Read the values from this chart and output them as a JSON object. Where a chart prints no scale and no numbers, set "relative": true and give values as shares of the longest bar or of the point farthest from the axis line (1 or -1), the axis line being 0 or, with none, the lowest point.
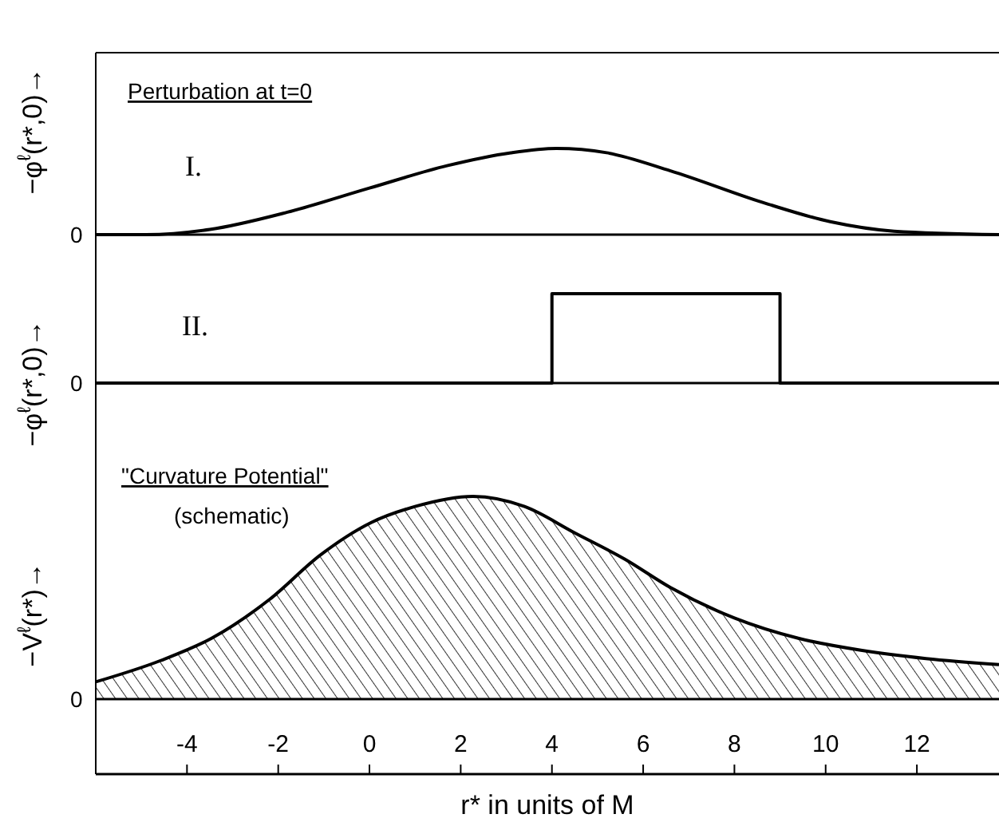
{
  "chart_data": [
    {
      "type": "line",
      "ylabel": "−φ$^{ℓ}$(r*,0)→",
      "relative": true,
      "xlim": [
        -6,
        13.8
      ],
      "tick_labels": false,
      "x": [
        -6,
        -4.9,
        -3.5,
        -1.8,
        0,
        1.7,
        3.1,
        4.1,
        5.2,
        6.6,
        8.7,
        10.1,
        11.5,
        13.8
      ],
      "series": [
        {
          "color": "#000000",
          "values": [
            0,
            0,
            0.06,
            0.26,
            0.54,
            0.8,
            0.95,
            1,
            0.95,
            0.74,
            0.36,
            0.15,
            0.04,
            0
          ]
        }
      ],
      "annotations": [
        "Perturbation at t=0",
        "I.",
        "0"
      ]
    },
    {
      "type": "line",
      "ylabel": "−φ$^{ℓ}$(r*,0)→",
      "relative": true,
      "xlim": [
        -6,
        13.8
      ],
      "tick_labels": false,
      "x": [
        -6,
        4,
        4,
        9,
        9,
        13.8
      ],
      "series": [
        {
          "color": "#000000",
          "values": [
            0,
            0,
            1,
            1,
            0,
            0
          ]
        }
      ],
      "annotations": [
        "II.",
        "0"
      ]
    },
    {
      "type": "area",
      "ylabel": "−V$^{ℓ}$(r*)→",
      "xlabel": "r* in units of M",
      "relative": true,
      "xlim": [
        -6,
        13.8
      ],
      "xticks": [
        -4,
        -2,
        0,
        2,
        4,
        6,
        8,
        10,
        12
      ],
      "tick_labels": "x",
      "x": [
        -6,
        -4.58,
        -3.46,
        -2.2,
        -1.08,
        0.03,
        1,
        2.27,
        3.4,
        4.5,
        5.6,
        6.6,
        8,
        9.4,
        10.8,
        12.2,
        13.8
      ],
      "series": [
        {
          "color": "#000000",
          "values": [
            0.085,
            0.19,
            0.3,
            0.49,
            0.71,
            0.87,
            0.95,
            1,
            0.95,
            0.82,
            0.69,
            0.55,
            0.4,
            0.3,
            0.24,
            0.2,
            0.17
          ]
        }
      ],
      "annotations": [
        "\"Curvature Potential\"",
        "(schematic)",
        "0"
      ]
    }
  ]
}
